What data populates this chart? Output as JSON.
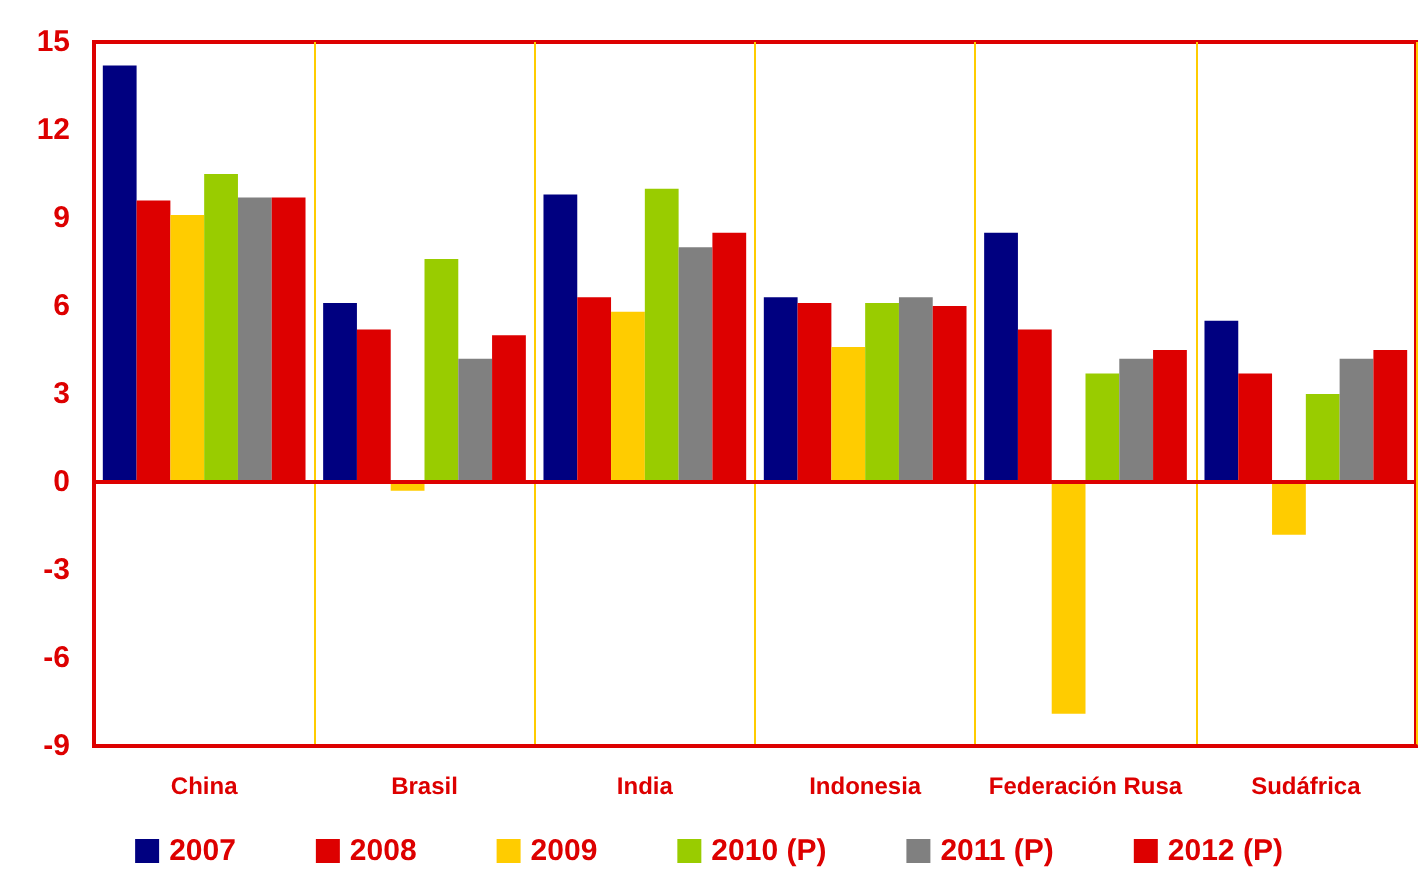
{
  "chart_data": {
    "type": "bar",
    "categories": [
      "China",
      "Brasil",
      "India",
      "Indonesia",
      "Federación Rusa",
      "Sudáfrica"
    ],
    "series": [
      {
        "name": "2007",
        "color": "#000080",
        "values": [
          14.2,
          6.1,
          9.8,
          6.3,
          8.5,
          5.5
        ]
      },
      {
        "name": "2008",
        "color": "#dd0000",
        "values": [
          9.6,
          5.2,
          6.3,
          6.1,
          5.2,
          3.7
        ]
      },
      {
        "name": "2009",
        "color": "#ffcc00",
        "values": [
          9.1,
          -0.3,
          5.8,
          4.6,
          -7.9,
          -1.8
        ]
      },
      {
        "name": "2010 (P)",
        "color": "#99cc00",
        "values": [
          10.5,
          7.6,
          10.0,
          6.1,
          3.7,
          3.0
        ]
      },
      {
        "name": "2011 (P)",
        "color": "#808080",
        "values": [
          9.7,
          4.2,
          8.0,
          6.3,
          4.2,
          4.2
        ]
      },
      {
        "name": "2012 (P)",
        "color": "#dd0000",
        "values": [
          9.7,
          5.0,
          8.5,
          6.0,
          4.5,
          4.5
        ]
      }
    ],
    "ylim": [
      -9,
      15
    ],
    "yticks": [
      -9,
      -6,
      -3,
      0,
      3,
      6,
      9,
      12,
      15
    ],
    "ref_lines": [
      {
        "axis": "y",
        "value": 0,
        "color": "#dd0000"
      }
    ],
    "grid": "x",
    "legend": "bottom"
  }
}
